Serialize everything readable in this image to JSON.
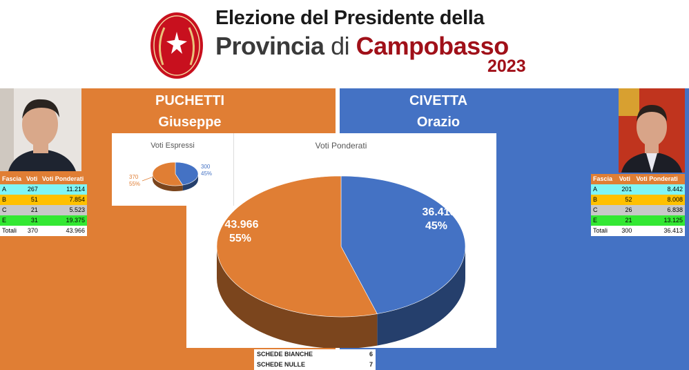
{
  "header": {
    "title_line1": "Elezione del Presidente della",
    "title_line2_a": "Provincia",
    "title_line2_b": "di",
    "title_line2_c": "Campobasso",
    "year": "2023"
  },
  "candidates": [
    {
      "first": "PUCHETTI",
      "second": "Giuseppe",
      "color": "#e07e34",
      "table": {
        "headers": [
          "Fascia",
          "Voti",
          "Voti Ponderati"
        ],
        "rows": [
          [
            "A",
            "267",
            "11.214"
          ],
          [
            "B",
            "51",
            "7.854"
          ],
          [
            "C",
            "21",
            "5.523"
          ],
          [
            "E",
            "31",
            "19.375"
          ],
          [
            "Totali",
            "370",
            "43.966"
          ]
        ]
      }
    },
    {
      "first": "CIVETTA",
      "second": "Orazio",
      "color": "#4472c4",
      "table": {
        "headers": [
          "Fascia",
          "Voti",
          "Voti Ponderati"
        ],
        "rows": [
          [
            "A",
            "201",
            "8.442"
          ],
          [
            "B",
            "52",
            "8.008"
          ],
          [
            "C",
            "26",
            "6.838"
          ],
          [
            "E",
            "21",
            "13.125"
          ],
          [
            "Totali",
            "300",
            "36.413"
          ]
        ]
      }
    }
  ],
  "chart_data": [
    {
      "type": "pie",
      "title": "Voti Espressi",
      "slices": [
        {
          "value": 300,
          "value_label": "300",
          "percent_label": "45%",
          "color": "#4472c4"
        },
        {
          "value": 370,
          "value_label": "370",
          "percent_label": "55%",
          "color": "#e07e34"
        }
      ]
    },
    {
      "type": "pie",
      "title": "Voti Ponderati",
      "slices": [
        {
          "value": 36413,
          "value_label": "36.413",
          "percent_label": "45%",
          "color": "#4472c4"
        },
        {
          "value": 43966,
          "value_label": "43.966",
          "percent_label": "55%",
          "color": "#e07e34"
        }
      ]
    }
  ],
  "schede": [
    {
      "label": "SCHEDE BIANCHE",
      "value": "6"
    },
    {
      "label": "SCHEDE NULLE",
      "value": "7"
    }
  ]
}
